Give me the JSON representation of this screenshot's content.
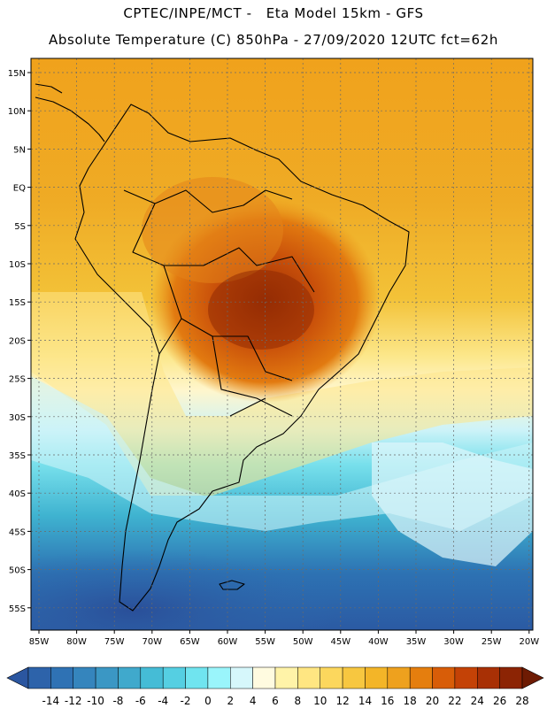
{
  "header": {
    "title_line_1": "CPTEC/INPE/MCT -   Eta Model 15km - GFS",
    "title_line_2": "Absolute Temperature (C) 850hPa - 27/09/2020 12UTC fct=62h"
  },
  "map": {
    "lat_labels": [
      "15N",
      "10N",
      "5N",
      "EQ",
      "5S",
      "10S",
      "15S",
      "20S",
      "25S",
      "30S",
      "35S",
      "40S",
      "45S",
      "50S",
      "55S"
    ],
    "lon_labels": [
      "85W",
      "80W",
      "75W",
      "70W",
      "65W",
      "60W",
      "55W",
      "50W",
      "45W",
      "40W",
      "35W",
      "30W",
      "25W",
      "20W"
    ]
  },
  "colorbar": {
    "labels": [
      "-14",
      "-12",
      "-10",
      "-8",
      "-6",
      "-4",
      "-2",
      "0",
      "2",
      "4",
      "6",
      "8",
      "10",
      "12",
      "14",
      "16",
      "18",
      "20",
      "22",
      "24",
      "26",
      "28"
    ],
    "colors": [
      "#2b56a0",
      "#2d63aa",
      "#2f72b4",
      "#3585bd",
      "#3b97c4",
      "#40a9cc",
      "#45bcd6",
      "#55cfe2",
      "#70e4ef",
      "#9af5fb",
      "#d6f7fb",
      "#fffbe0",
      "#fff3a8",
      "#ffe682",
      "#fcd75d",
      "#f7c740",
      "#f3b528",
      "#eea11e",
      "#e57e0e",
      "#d85d08",
      "#c44206",
      "#a83005",
      "#8c2404",
      "#6e1b03"
    ]
  }
}
